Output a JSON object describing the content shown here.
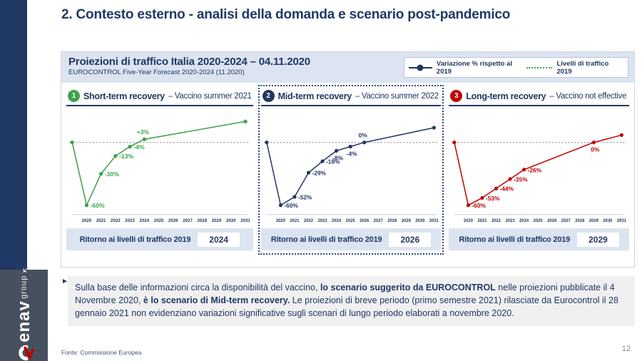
{
  "slide": {
    "title": "2. Contesto esterno - analisi della domanda e scenario post-pandemico",
    "page_number": "12",
    "source": "Fonte: Commissione Europea"
  },
  "sidebar": {
    "brand": "enav",
    "brand_sub": "group"
  },
  "panel": {
    "title": "Proiezioni di traffico Italia 2020-2024 – 04.11.2020",
    "subtitle": "EUROCONTROL Five-Year Forecast 2020-2024 (11.2020)",
    "legend": [
      {
        "label": "Variazione % rispetto al 2019",
        "type": "line-dot",
        "color": "#203864"
      },
      {
        "label": "Livelli di traffico 2019",
        "type": "dotted",
        "color": "#4ca454"
      }
    ]
  },
  "scenarios": [
    {
      "number": "1",
      "name": "Short-term recovery",
      "suffix": "– Vaccino summer 2021",
      "color": "#3fa24c",
      "return_label": "Ritorno ai livelli di traffico 2019",
      "return_year": "2024",
      "highlighted": false
    },
    {
      "number": "2",
      "name": "Mid-term recovery",
      "suffix": "– Vaccino summer 2022",
      "color": "#203864",
      "return_label": "Ritorno ai livelli di traffico 2019",
      "return_year": "2026",
      "highlighted": true
    },
    {
      "number": "3",
      "name": "Long-term recovery",
      "suffix": "– Vaccino not effective",
      "color": "#c00000",
      "return_label": "Ritorno ai livelli di traffico 2019",
      "return_year": "2029",
      "highlighted": false
    }
  ],
  "chart_data": [
    {
      "type": "line",
      "title": "Short-term recovery – Vaccino summer 2021",
      "color": "#3fa24c",
      "x_ticks": [
        "2020",
        "2021",
        "2022",
        "2023",
        "2024",
        "2025",
        "2026",
        "2027",
        "2028",
        "2029",
        "2030",
        "2031"
      ],
      "ylim": [
        -70,
        25
      ],
      "reference_line": {
        "value": 0,
        "label": "Livelli di traffico 2019"
      },
      "series": [
        {
          "name": "Variazione % rispetto al 2019",
          "points": [
            {
              "year": 2019,
              "value": 0
            },
            {
              "year": 2020,
              "value": -60,
              "label": "-60%",
              "pos": "right"
            },
            {
              "year": 2021,
              "value": -30,
              "label": "-30%",
              "pos": "right"
            },
            {
              "year": 2022,
              "value": -13,
              "label": "-13%",
              "pos": "right"
            },
            {
              "year": 2023,
              "value": -4,
              "label": "-4%",
              "pos": "right"
            },
            {
              "year": 2024,
              "value": 3,
              "label": "+3%",
              "pos": "above"
            },
            {
              "year": 2031,
              "value": 20
            }
          ]
        }
      ]
    },
    {
      "type": "line",
      "title": "Mid-term recovery – Vaccino summer 2022",
      "color": "#203864",
      "x_ticks": [
        "2020",
        "2021",
        "2022",
        "2023",
        "2024",
        "2025",
        "2026",
        "2027",
        "2028",
        "2029",
        "2030",
        "2031"
      ],
      "ylim": [
        -70,
        25
      ],
      "reference_line": {
        "value": 0,
        "label": "Livelli di traffico 2019"
      },
      "series": [
        {
          "name": "Variazione % rispetto al 2019",
          "points": [
            {
              "year": 2019,
              "value": 0
            },
            {
              "year": 2020,
              "value": -60,
              "label": "-60%",
              "pos": "right"
            },
            {
              "year": 2021,
              "value": -52,
              "label": "-52%",
              "pos": "right"
            },
            {
              "year": 2022,
              "value": -29,
              "label": "-29%",
              "pos": "right"
            },
            {
              "year": 2023,
              "value": -18,
              "label": "-18%",
              "pos": "right"
            },
            {
              "year": 2024,
              "value": -8,
              "label": "-8%",
              "pos": "below"
            },
            {
              "year": 2025,
              "value": -4,
              "label": "-4%",
              "pos": "below"
            },
            {
              "year": 2026,
              "value": 0,
              "label": "0%",
              "pos": "above"
            },
            {
              "year": 2031,
              "value": 14
            }
          ]
        }
      ]
    },
    {
      "type": "line",
      "title": "Long-term recovery – Vaccino not effective",
      "color": "#c00000",
      "x_ticks": [
        "2020",
        "2021",
        "2022",
        "2023",
        "2024",
        "2025",
        "2026",
        "2027",
        "2028",
        "2029",
        "2030",
        "2031"
      ],
      "ylim": [
        -70,
        25
      ],
      "reference_line": {
        "value": 0,
        "label": "Livelli di traffico 2019"
      },
      "series": [
        {
          "name": "Variazione % rispetto al 2019",
          "points": [
            {
              "year": 2019,
              "value": 0
            },
            {
              "year": 2020,
              "value": -60,
              "label": "-60%",
              "pos": "right"
            },
            {
              "year": 2021,
              "value": -53,
              "label": "-53%",
              "pos": "right"
            },
            {
              "year": 2022,
              "value": -44,
              "label": "-44%",
              "pos": "right"
            },
            {
              "year": 2023,
              "value": -35,
              "label": "-35%",
              "pos": "right"
            },
            {
              "year": 2024,
              "value": -26,
              "label": "-26%",
              "pos": "right"
            },
            {
              "year": 2029,
              "value": 0,
              "label": "0%",
              "pos": "below"
            },
            {
              "year": 2031,
              "value": 7
            }
          ]
        }
      ]
    }
  ],
  "note": {
    "segments": [
      {
        "text": "Sulla base delle informazioni circa la disponibilità del vaccino, ",
        "bold": false
      },
      {
        "text": "lo scenario suggerito da EUROCONTROL",
        "bold": true
      },
      {
        "text": " nelle proiezioni pubblicate il 4 Novembre 2020, ",
        "bold": false
      },
      {
        "text": "è lo scenario di Mid-term recovery.",
        "bold": true
      },
      {
        "text": " Le proiezioni di breve periodo (primo semestre 2021) rilasciate da Eurocontrol il 28 gennaio 2021 non evidenziano variazioni significative sugli scenari di lungo periodo elaborati a novembre 2020.",
        "bold": false
      }
    ]
  }
}
